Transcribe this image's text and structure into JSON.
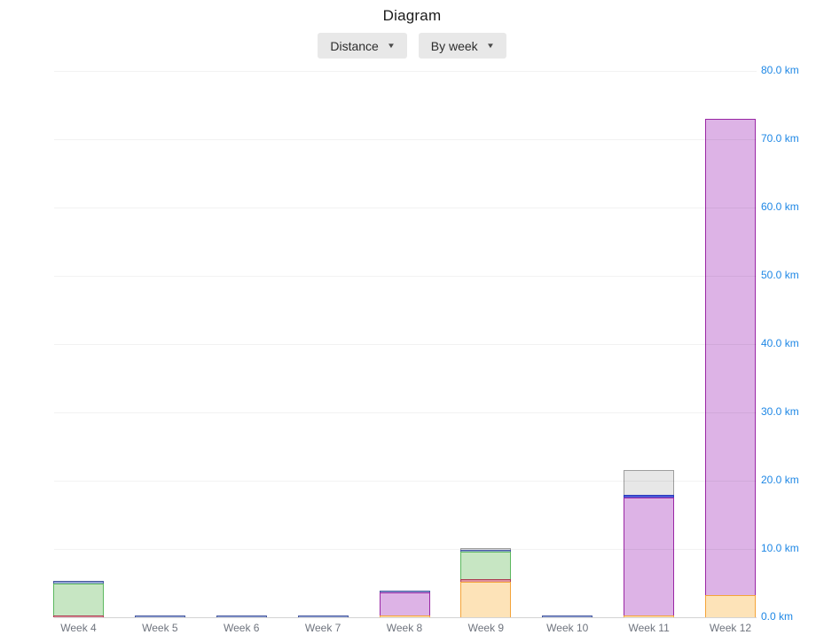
{
  "page": {
    "title": "Diagram"
  },
  "controls": {
    "metric_dropdown": {
      "label": "Distance",
      "caret": "▼"
    },
    "period_dropdown": {
      "label": "By week",
      "caret": "▼"
    }
  },
  "chart_data": {
    "type": "bar",
    "stacked": true,
    "title": "Diagram",
    "unit": "km",
    "categories": [
      "Week 4",
      "Week 5",
      "Week 6",
      "Week 7",
      "Week 8",
      "Week 9",
      "Week 10",
      "Week 11",
      "Week 12"
    ],
    "ylim": [
      0,
      80
    ],
    "yticks": [
      0,
      10,
      20,
      30,
      40,
      50,
      60,
      70,
      80
    ],
    "ytick_labels": [
      "0.0 km",
      "10.0 km",
      "20.0 km",
      "30.0 km",
      "40.0 km",
      "50.0 km",
      "60.0 km",
      "70.0 km",
      "80.0 km"
    ],
    "grid": "horizontal",
    "legend_visible": false,
    "series_note": "no legend shown; series identified by color, listed bottom-to-top of stack, values in km",
    "series": [
      {
        "name": "orange",
        "fill": "#fde3b8",
        "border": "#f4a43a",
        "values": [
          0,
          0,
          0,
          0,
          0.2,
          5.2,
          0,
          0.3,
          3.2
        ]
      },
      {
        "name": "red",
        "fill": "#e0919f",
        "border": "#ab3e52",
        "values": [
          0.3,
          0,
          0,
          0,
          0,
          0.4,
          0,
          0,
          0
        ]
      },
      {
        "name": "purple",
        "fill": "#ddb3e6",
        "border": "#9a27a5",
        "values": [
          0,
          0,
          0,
          0,
          3.4,
          0,
          0,
          17.2,
          69.8
        ]
      },
      {
        "name": "green",
        "fill": "#c7e6c3",
        "border": "#5cb85f",
        "values": [
          4.7,
          0,
          0,
          0,
          0,
          4.0,
          0,
          0,
          0
        ]
      },
      {
        "name": "slate-blue",
        "fill": "#93a4d6",
        "border": "#46589e",
        "values": [
          0.3,
          0.3,
          0.3,
          0.3,
          0.3,
          0.3,
          0.3,
          0,
          0
        ]
      },
      {
        "name": "royal-blue",
        "fill": "#4b5bd6",
        "border": "#2b3ac0",
        "values": [
          0,
          0,
          0,
          0,
          0,
          0,
          0,
          0.4,
          0
        ]
      },
      {
        "name": "gray",
        "fill": "#e7e7e7",
        "border": "#9e9e9e",
        "values": [
          0,
          0,
          0,
          0,
          0,
          0.2,
          0,
          3.6,
          0
        ]
      }
    ],
    "totals_km": [
      5.3,
      0.3,
      0.3,
      0.3,
      3.9,
      10.1,
      0.3,
      21.5,
      73.0
    ]
  },
  "colors": {
    "ytick_label": "#1e87e5",
    "xtick_label": "#6f747e",
    "gridline": "#f2f2f2",
    "axis_line": "#d6d6d6",
    "button_bg": "#e8e8e8"
  }
}
